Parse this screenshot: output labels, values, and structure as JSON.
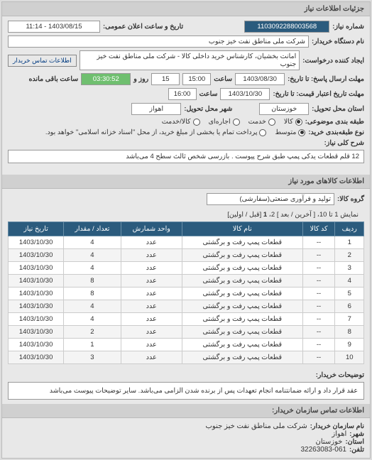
{
  "header": {
    "title": "جزئیات اطلاعات نیاز"
  },
  "req": {
    "number_label": "شماره نیاز:",
    "number": "1103092288003568",
    "public_date_label": "تاریخ و ساعت اعلان عمومی:",
    "public_date": "1403/08/15 - 11:14",
    "buyer_label": "نام دستگاه خریدار:",
    "buyer": "شرکت ملی مناطق نفت خیز جنوب",
    "requester_label": "ایجاد کننده درخواست:",
    "requester": "امانت بخشیان، کارشناس خرید داخلی کالا - شرکت ملی مناطق نفت خیز جنوب",
    "contact_btn": "اطلاعات تماس خریدار",
    "deadline_send_label": "مهلت ارسال پاسخ: تا تاریخ:",
    "deadline_send_date": "1403/08/30",
    "hour_label": "ساعت",
    "deadline_send_hour": "15:00",
    "days_remain": "15",
    "days_label": "روز و",
    "time_remain": "03:30:52",
    "time_remain_label": "ساعت باقی مانده",
    "validity_label": "مهلت تاریخ اعتبار قیمت: تا تاریخ:",
    "validity_date": "1403/10/30",
    "validity_hour": "16:00",
    "province_label": "استان محل تحویل:",
    "province": "خوزستان",
    "city_label": "شهر محل تحویل:",
    "city": "اهواز",
    "pack_label": "طبقه بندی موضوعی:",
    "pack_options": [
      "کالا",
      "خدمت",
      "اجاره‌ای",
      "کالا/خدمت"
    ],
    "pack_selected": 0,
    "buy_type_label": "نوع طبقه‌بندی خرید:",
    "buy_type_options": [
      "متوسط",
      "پرداخت تمام یا بخشی از مبلغ خرید، از محل \"اسناد خزانه اسلامی\" خواهد بود."
    ],
    "buy_type_selected": 0,
    "desc_label": "شرح کلی نیاز:",
    "desc": "12 قلم قطعات یدکی پمپ طبق شرح پیوست . بازرسی شخص ثالث سطح 4 می‌باشد"
  },
  "goods": {
    "section_title": "اطلاعات کالاهای مورد نیاز",
    "group_label": "گروه کالا:",
    "group": "تولید و فرآوری صنعتی(سفارشی)",
    "pager_text": "نمایش 1 تا 10، [ آخرین / بعد ] 2، ",
    "pager_bold": "1",
    "pager_tail": " [قبل / اولین]",
    "columns": [
      "ردیف",
      "کد کالا",
      "نام کالا",
      "واحد شمارش",
      "تعداد / مقدار",
      "تاریخ نیاز"
    ],
    "rows": [
      [
        "1",
        "--",
        "قطعات پمپ رفت و برگشتی",
        "عدد",
        "4",
        "1403/10/30"
      ],
      [
        "2",
        "--",
        "قطعات پمپ رفت و برگشتی",
        "عدد",
        "4",
        "1403/10/30"
      ],
      [
        "3",
        "--",
        "قطعات پمپ رفت و برگشتی",
        "عدد",
        "4",
        "1403/10/30"
      ],
      [
        "4",
        "--",
        "قطعات پمپ رفت و برگشتی",
        "عدد",
        "8",
        "1403/10/30"
      ],
      [
        "5",
        "--",
        "قطعات پمپ رفت و برگشتی",
        "عدد",
        "8",
        "1403/10/30"
      ],
      [
        "6",
        "--",
        "قطعات پمپ رفت و برگشتی",
        "عدد",
        "4",
        "1403/10/30"
      ],
      [
        "7",
        "--",
        "قطعات پمپ رفت و برگشتی",
        "عدد",
        "4",
        "1403/10/30"
      ],
      [
        "8",
        "--",
        "قطعات پمپ رفت و برگشتی",
        "عدد",
        "2",
        "1403/10/30"
      ],
      [
        "9",
        "--",
        "قطعات پمپ رفت و برگشتی",
        "عدد",
        "1",
        "1403/10/30"
      ],
      [
        "10",
        "--",
        "قطعات پمپ رفت و برگشتی",
        "عدد",
        "3",
        "1403/10/30"
      ]
    ]
  },
  "notes": {
    "label": "توضیحات خریدار:",
    "text": "عقد قرار داد و ارائه ضمانتنامه انجام تعهدات پس از برنده شدن الزامی می‌باشد. سایر توضیحات پیوست می‌باشد"
  },
  "org": {
    "section_title": "اطلاعات تماس سازمان خریدار:",
    "name_label": "نام سازمان خریدار:",
    "name": "شرکت ملی مناطق نفت خیز جنوب",
    "city_label": "شهر:",
    "city": "اهواز",
    "province_label": "استان:",
    "province": "خوزستان",
    "phone_label": "تلفن:",
    "phone": "32263083-061",
    "id": "3443083-061"
  },
  "colors": {
    "header_bg": "#2b5b7d",
    "accent_green": "#6fbf6f"
  }
}
